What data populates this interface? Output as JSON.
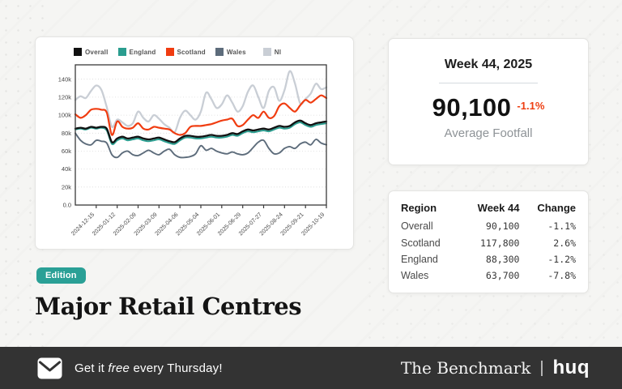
{
  "colors": {
    "accent_teal": "#2aa096",
    "accent_orange": "#ee3e11",
    "footer_bg": "#333333",
    "page_bg": "#f5f5f3"
  },
  "chart_data": {
    "type": "line",
    "title": "",
    "xlabel": "",
    "ylabel": "",
    "unit": "footfall (thousands)",
    "grid": "horizontal-dotted",
    "legend_position": "top",
    "ylim": [
      0,
      156
    ],
    "y_axis_labels": [
      "0.0",
      "20k",
      "40k",
      "60k",
      "80k",
      "100k",
      "120k",
      "140k"
    ],
    "x": [
      "2024-11-17",
      "2024-11-24",
      "2024-12-01",
      "2024-12-08",
      "2024-12-15",
      "2024-12-22",
      "2024-12-29",
      "2025-01-05",
      "2025-01-12",
      "2025-01-19",
      "2025-01-26",
      "2025-02-02",
      "2025-02-09",
      "2025-02-16",
      "2025-02-23",
      "2025-03-02",
      "2025-03-09",
      "2025-03-16",
      "2025-03-23",
      "2025-03-30",
      "2025-04-06",
      "2025-04-13",
      "2025-04-20",
      "2025-04-27",
      "2025-05-04",
      "2025-05-11",
      "2025-05-18",
      "2025-05-25",
      "2025-06-01",
      "2025-06-08",
      "2025-06-15",
      "2025-06-22",
      "2025-06-29",
      "2025-07-06",
      "2025-07-13",
      "2025-07-20",
      "2025-07-27",
      "2025-08-03",
      "2025-08-10",
      "2025-08-17",
      "2025-08-24",
      "2025-08-31",
      "2025-09-07",
      "2025-09-14",
      "2025-09-21",
      "2025-09-28",
      "2025-10-05",
      "2025-10-12",
      "2025-10-19"
    ],
    "tick_indices": [
      4,
      8,
      12,
      16,
      20,
      24,
      28,
      32,
      36,
      40,
      44,
      48
    ],
    "tick_labels": [
      "2024-12-15",
      "2025-01-12",
      "2025-02-09",
      "2025-03-09",
      "2025-04-06",
      "2025-05-04",
      "2025-06-01",
      "2025-06-29",
      "2025-07-27",
      "2025-08-24",
      "2025-09-21",
      "2025-10-19"
    ],
    "series": [
      {
        "name": "Overall",
        "color": "#111111",
        "values": [
          85,
          86,
          85,
          87,
          86,
          87,
          85,
          70,
          74,
          76,
          74,
          75,
          76,
          74,
          73,
          74,
          75,
          73,
          71,
          70,
          74,
          77,
          77,
          76,
          76,
          77,
          78,
          77,
          77,
          78,
          80,
          79,
          82,
          84,
          83,
          84,
          85,
          84,
          86,
          88,
          87,
          88,
          92,
          94,
          91,
          89,
          91,
          92,
          93
        ]
      },
      {
        "name": "England",
        "color": "#2a9d8f",
        "values": [
          84,
          85,
          84,
          86,
          85,
          86,
          83,
          68,
          72,
          74,
          72,
          73,
          74,
          72,
          71,
          72,
          73,
          71,
          69,
          68,
          72,
          75,
          75,
          74,
          74,
          75,
          76,
          75,
          75,
          76,
          78,
          77,
          80,
          82,
          81,
          82,
          83,
          82,
          84,
          86,
          85,
          86,
          90,
          92,
          89,
          87,
          89,
          90,
          91
        ]
      },
      {
        "name": "Scotland",
        "color": "#f03c10",
        "values": [
          101,
          97,
          100,
          106,
          107,
          106,
          103,
          78,
          93,
          87,
          85,
          86,
          91,
          85,
          84,
          87,
          86,
          85,
          84,
          80,
          78,
          80,
          87,
          88,
          88,
          89,
          90,
          92,
          94,
          95,
          96,
          88,
          89,
          95,
          100,
          97,
          104,
          97,
          99,
          110,
          113,
          108,
          104,
          111,
          117,
          114,
          118,
          122,
          119
        ]
      },
      {
        "name": "Wales",
        "color": "#5d6c7b",
        "values": [
          80,
          72,
          68,
          67,
          72,
          71,
          69,
          56,
          53,
          58,
          60,
          56,
          55,
          58,
          61,
          58,
          56,
          60,
          62,
          56,
          53,
          53,
          54,
          57,
          66,
          61,
          63,
          60,
          58,
          57,
          59,
          57,
          56,
          58,
          64,
          70,
          72,
          63,
          57,
          58,
          63,
          65,
          63,
          68,
          70,
          67,
          73,
          69,
          67
        ]
      },
      {
        "name": "NI",
        "color": "#c9ced5",
        "values": [
          117,
          121,
          119,
          127,
          133,
          128,
          109,
          87,
          95,
          92,
          88,
          91,
          104,
          97,
          93,
          100,
          96,
          90,
          86,
          81,
          97,
          105,
          100,
          95,
          104,
          125,
          118,
          108,
          112,
          122,
          114,
          104,
          110,
          126,
          133,
          120,
          108,
          127,
          131,
          116,
          128,
          149,
          135,
          113,
          118,
          124,
          135,
          129,
          131
        ]
      }
    ],
    "paint_order": [
      4,
      3,
      1,
      0,
      2
    ]
  },
  "stat_card": {
    "title": "Week 44, 2025",
    "value": "90,100",
    "change": "-1.1%",
    "label": "Average Footfall"
  },
  "table": {
    "headers": [
      "Region",
      "Week 44",
      "Change"
    ],
    "rows": [
      {
        "region": "Overall",
        "week44": "90,100",
        "change": "-1.1%"
      },
      {
        "region": "Scotland",
        "week44": "117,800",
        "change": "2.6%"
      },
      {
        "region": "England",
        "week44": "88,300",
        "change": "-1.2%"
      },
      {
        "region": "Wales",
        "week44": "63,700",
        "change": "-7.8%"
      }
    ]
  },
  "edition_badge": "Edition",
  "page_title": "Major Retail Centres",
  "footer": {
    "cta_prefix": "Get it ",
    "cta_em": "free",
    "cta_suffix": " every Thursday!",
    "envelope_icon": "envelope",
    "brand": "The Benchmark",
    "divider": "|",
    "logo": "huq"
  }
}
